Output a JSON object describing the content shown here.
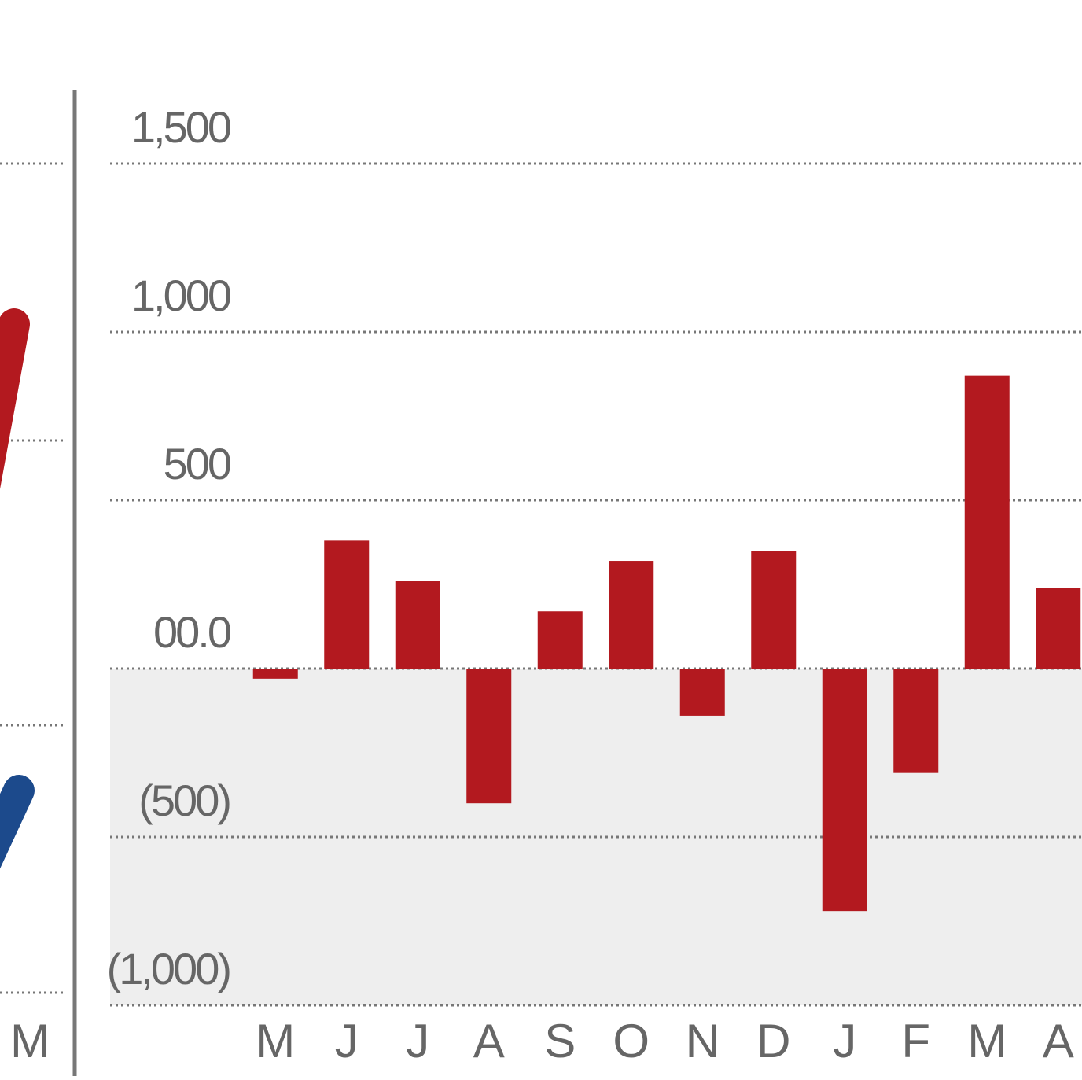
{
  "chart_data": {
    "type": "bar",
    "categories": [
      "M",
      "J",
      "J",
      "A",
      "S",
      "O",
      "N",
      "D",
      "J",
      "F",
      "M",
      "A"
    ],
    "values": [
      -30,
      380,
      260,
      -400,
      170,
      320,
      -140,
      350,
      -720,
      -310,
      870,
      240
    ],
    "color": "#b3191f",
    "ylim": [
      -1000,
      1500
    ],
    "yticks": [
      {
        "value": -1000,
        "label": "(1,000)"
      },
      {
        "value": -500,
        "label": "(500)"
      },
      {
        "value": 0,
        "label": "00.0"
      },
      500,
      {
        "value": 1000,
        "label": "1,000"
      },
      {
        "value": 1500,
        "label": "1,500"
      }
    ],
    "grid": true,
    "negative_shading": "#eeeeee"
  },
  "left_panel": {
    "label": "M"
  }
}
